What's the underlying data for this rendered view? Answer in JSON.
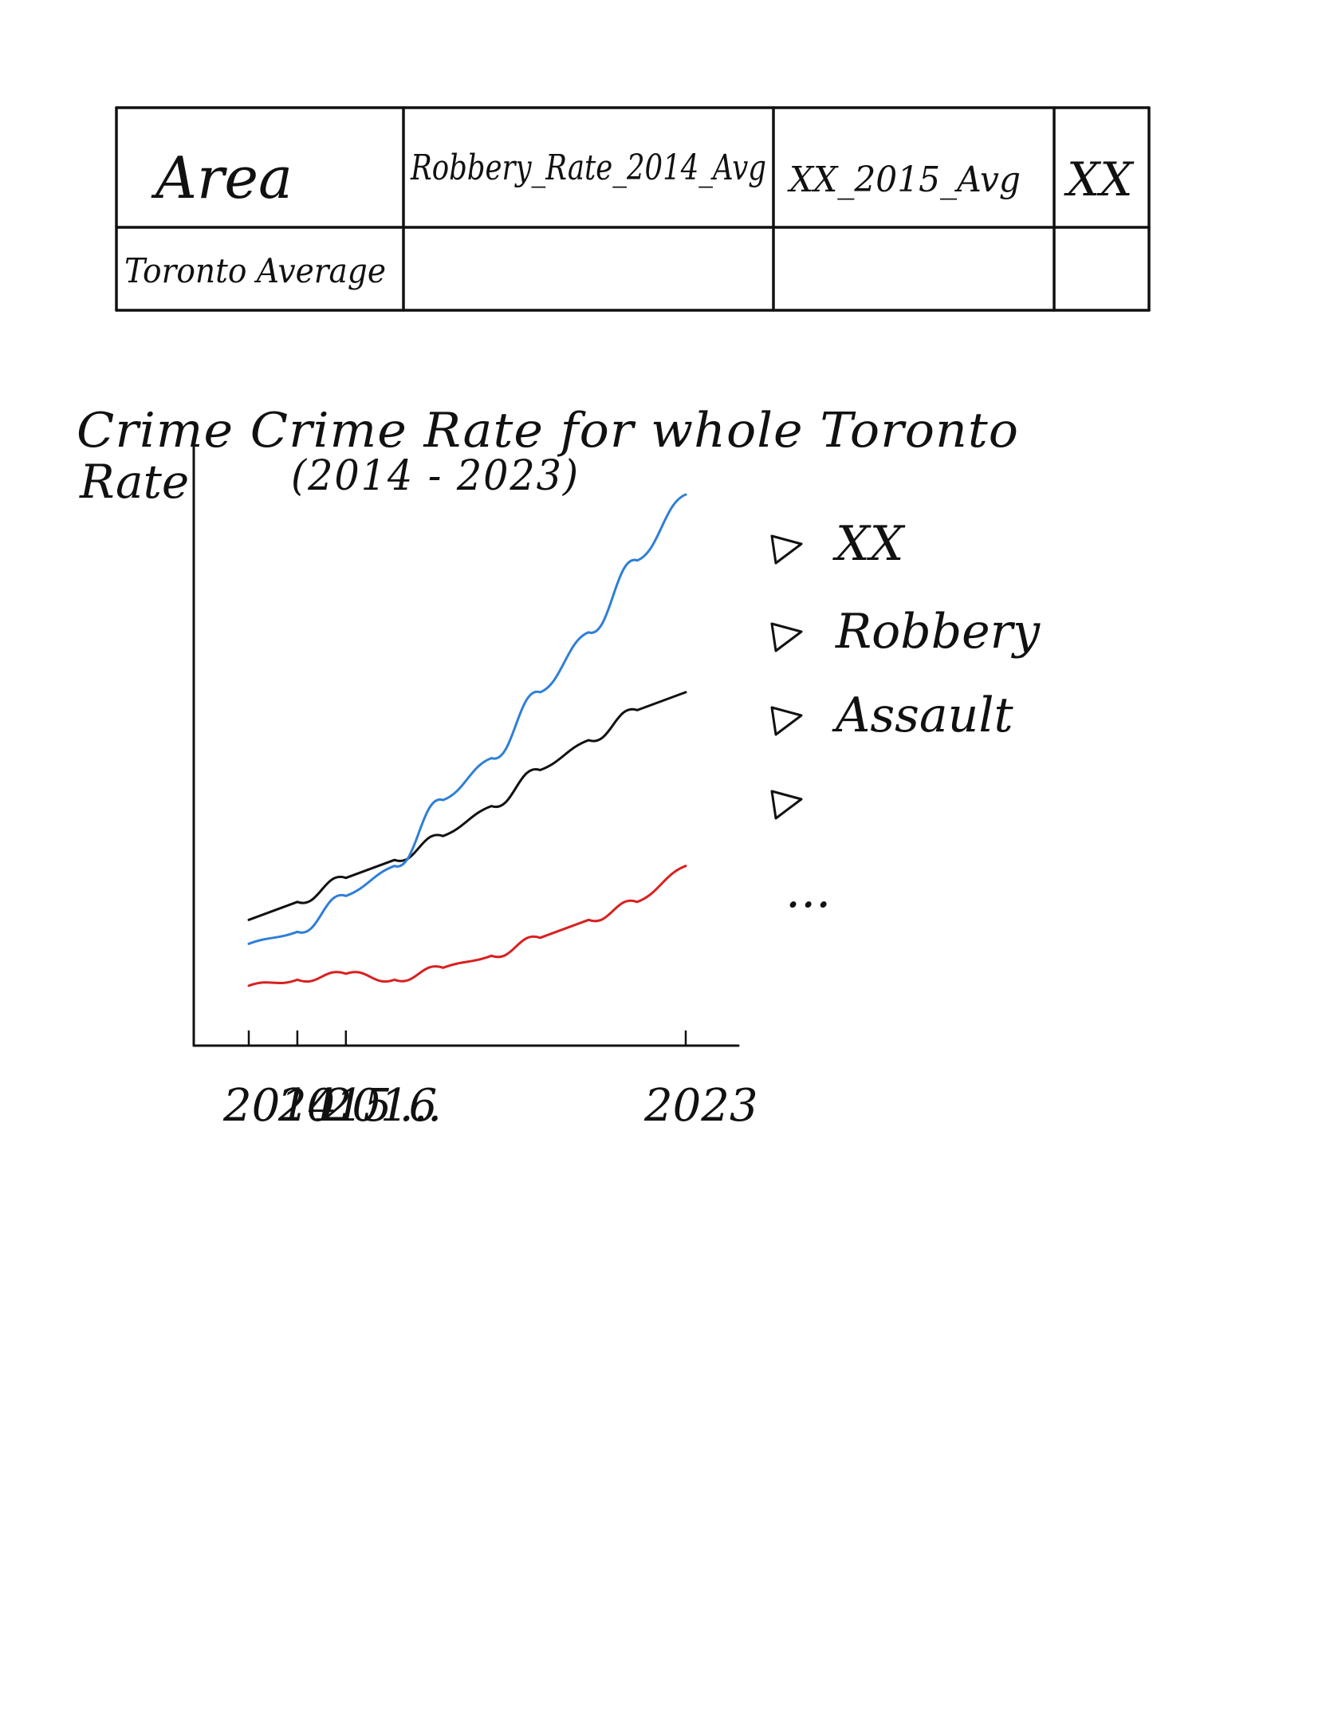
{
  "table": {
    "headers": [
      "Area",
      "Robbery_Rate_2014_Avg",
      "XX_2015_Avg",
      "XX"
    ],
    "rows": [
      [
        "Toronto Average",
        "",
        "",
        ""
      ]
    ]
  },
  "chart_data": {
    "type": "line",
    "title": "Crime Crime Rate for whole Toronto",
    "subtitle": "(2014 - 2023)",
    "ylabel": "Rate",
    "x": [
      2014,
      2015,
      2016,
      2017,
      2018,
      2019,
      2020,
      2021,
      2022,
      2023
    ],
    "x_tick_labels": [
      "2014",
      "2015",
      "2016",
      "...",
      "2023"
    ],
    "x_tick_values": [
      2014,
      2015,
      2016,
      2023
    ],
    "ylim": [
      0,
      10
    ],
    "grid": false,
    "legend_position": "right",
    "series": [
      {
        "name": "XX",
        "color": "#111111",
        "values": [
          2.1,
          2.4,
          2.8,
          3.1,
          3.5,
          4.0,
          4.6,
          5.1,
          5.6,
          5.9
        ]
      },
      {
        "name": "Robbery",
        "color": "#2f7fd6",
        "values": [
          1.7,
          1.9,
          2.5,
          3.0,
          4.1,
          4.8,
          5.9,
          6.9,
          8.1,
          9.2
        ]
      },
      {
        "name": "Assault",
        "color": "#d92020",
        "values": [
          1.0,
          1.1,
          1.2,
          1.1,
          1.3,
          1.5,
          1.8,
          2.1,
          2.4,
          3.0
        ]
      }
    ],
    "legend": [
      "XX",
      "Robbery",
      "Assault",
      "",
      "..."
    ]
  }
}
